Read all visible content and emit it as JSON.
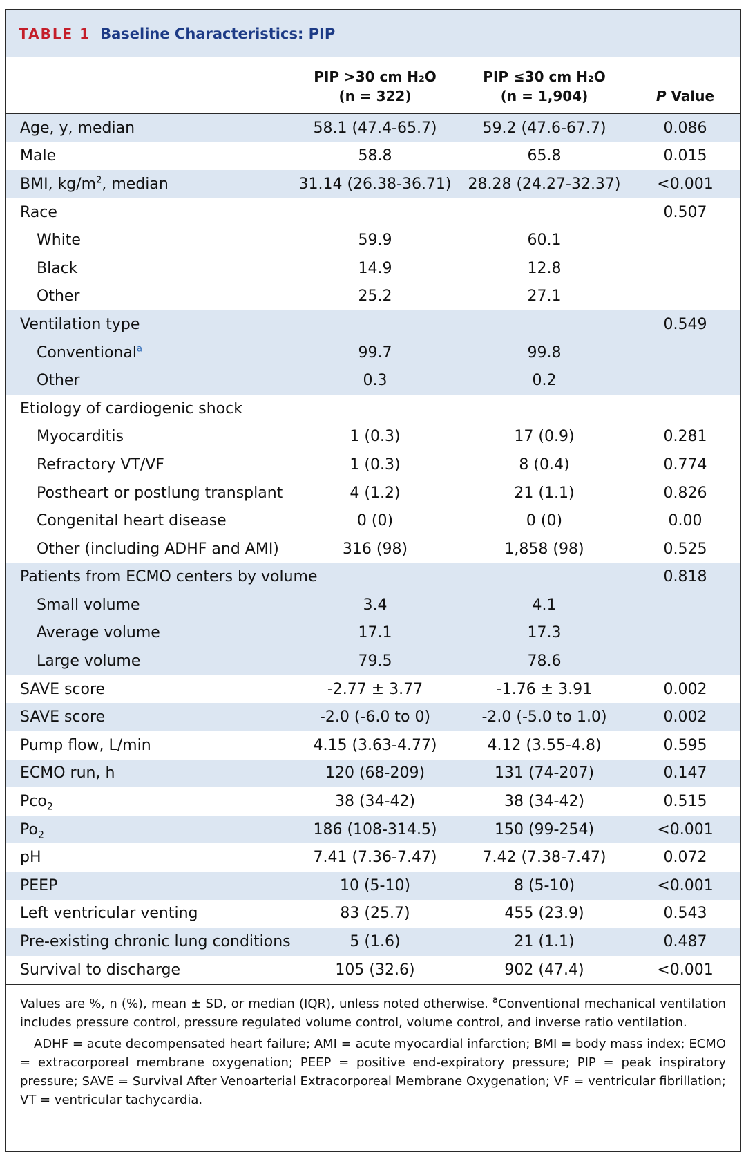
{
  "table": {
    "label": "TABLE 1",
    "title": "Baseline Characteristics: PIP",
    "headers": {
      "col1_line1": "PIP >30 cm H₂O",
      "col1_line2": "(n = 322)",
      "col2_line1": "PIP ≤30 cm H₂O",
      "col2_line2": "(n = 1,904)",
      "pvalue_italic": "P",
      "pvalue_rest": " Value"
    },
    "rows": [
      {
        "label": "Age, y, median",
        "a": "58.1 (47.4-65.7)",
        "b": "59.2 (47.6-67.7)",
        "p": "0.086"
      },
      {
        "label": "Male",
        "a": "58.8",
        "b": "65.8",
        "p": "0.015"
      },
      {
        "label": "BMI, kg/m",
        "label_sup": "2",
        "label_after": ", median",
        "a": "31.14 (26.38-36.71)",
        "b": "28.28 (24.27-32.37)",
        "p": "<0.001"
      },
      {
        "label": "Race",
        "a": "",
        "b": "",
        "p": "0.507"
      },
      {
        "label": "White",
        "a": "59.9",
        "b": "60.1",
        "p": ""
      },
      {
        "label": "Black",
        "a": "14.9",
        "b": "12.8",
        "p": ""
      },
      {
        "label": "Other",
        "a": "25.2",
        "b": "27.1",
        "p": ""
      },
      {
        "label": "Ventilation type",
        "a": "",
        "b": "",
        "p": "0.549"
      },
      {
        "label": "Conventional",
        "label_sup": "a",
        "a": "99.7",
        "b": "99.8",
        "p": ""
      },
      {
        "label": "Other",
        "a": "0.3",
        "b": "0.2",
        "p": ""
      },
      {
        "label": "Etiology of cardiogenic shock",
        "a": "",
        "b": "",
        "p": ""
      },
      {
        "label": "Myocarditis",
        "a": "1 (0.3)",
        "b": "17 (0.9)",
        "p": "0.281"
      },
      {
        "label": "Refractory VT/VF",
        "a": "1 (0.3)",
        "b": "8 (0.4)",
        "p": "0.774"
      },
      {
        "label": "Postheart or postlung transplant",
        "a": "4 (1.2)",
        "b": "21 (1.1)",
        "p": "0.826"
      },
      {
        "label": "Congenital heart disease",
        "a": "0 (0)",
        "b": "0 (0)",
        "p": "0.00"
      },
      {
        "label": "Other (including ADHF and AMI)",
        "a": "316 (98)",
        "b": "1,858 (98)",
        "p": "0.525"
      },
      {
        "label": "Patients from ECMO centers by volume",
        "a": "",
        "b": "",
        "p": "0.818"
      },
      {
        "label": "Small volume",
        "a": "3.4",
        "b": "4.1",
        "p": ""
      },
      {
        "label": "Average volume",
        "a": "17.1",
        "b": "17.3",
        "p": ""
      },
      {
        "label": "Large volume",
        "a": "79.5",
        "b": "78.6",
        "p": ""
      },
      {
        "label": "SAVE score",
        "a": "-2.77 ± 3.77",
        "b": "-1.76 ± 3.91",
        "p": "0.002"
      },
      {
        "label": "SAVE score",
        "a": "-2.0 (-6.0 to 0)",
        "b": "-2.0 (-5.0 to 1.0)",
        "p": "0.002"
      },
      {
        "label": "Pump flow, L/min",
        "a": "4.15 (3.63-4.77)",
        "b": "4.12 (3.55-4.8)",
        "p": "0.595"
      },
      {
        "label": "ECMO run, h",
        "a": "120 (68-209)",
        "b": "131 (74-207)",
        "p": "0.147"
      },
      {
        "label": "Pco",
        "label_sub": "2",
        "a": "38 (34-42)",
        "b": "38 (34-42)",
        "p": "0.515"
      },
      {
        "label": "Po",
        "label_sub": "2",
        "a": "186 (108-314.5)",
        "b": "150 (99-254)",
        "p": "<0.001"
      },
      {
        "label": "pH",
        "a": "7.41 (7.36-7.47)",
        "b": "7.42 (7.38-7.47)",
        "p": "0.072"
      },
      {
        "label": "PEEP",
        "a": "10 (5-10)",
        "b": "8 (5-10)",
        "p": "<0.001"
      },
      {
        "label": "Left ventricular venting",
        "a": "83 (25.7)",
        "b": "455 (23.9)",
        "p": "0.543"
      },
      {
        "label": "Pre-existing chronic lung conditions",
        "a": "5 (1.6)",
        "b": "21 (1.1)",
        "p": "0.487"
      },
      {
        "label": "Survival to discharge",
        "a": "105 (32.6)",
        "b": "902 (47.4)",
        "p": "<0.001"
      }
    ],
    "footnotes": {
      "values_note": "Values are %, n (%), mean ± SD, or median (IQR), unless noted otherwise. ",
      "fn_marker": "a",
      "fn_text": "Conventional mechanical ventilation includes pressure control, pressure regulated volume control, volume control, and inverse ratio ventilation.",
      "abbreviations": "ADHF = acute decompensated heart failure; AMI = acute myocardial infarction; BMI = body mass index; ECMO = extracorporeal membrane oxygenation; PEEP = positive end-expiratory pressure; PIP = peak inspiratory pressure; SAVE = Survival After Venoarterial Extracorporeal Membrane Oxygenation; VF = ventricular fibrillation; VT = ventricular tachycardia."
    },
    "colors": {
      "label_red": "#c41e2a",
      "title_blue": "#1d3b86",
      "band_blue": "#dce6f2",
      "footnote_blue": "#2a68b7"
    }
  }
}
